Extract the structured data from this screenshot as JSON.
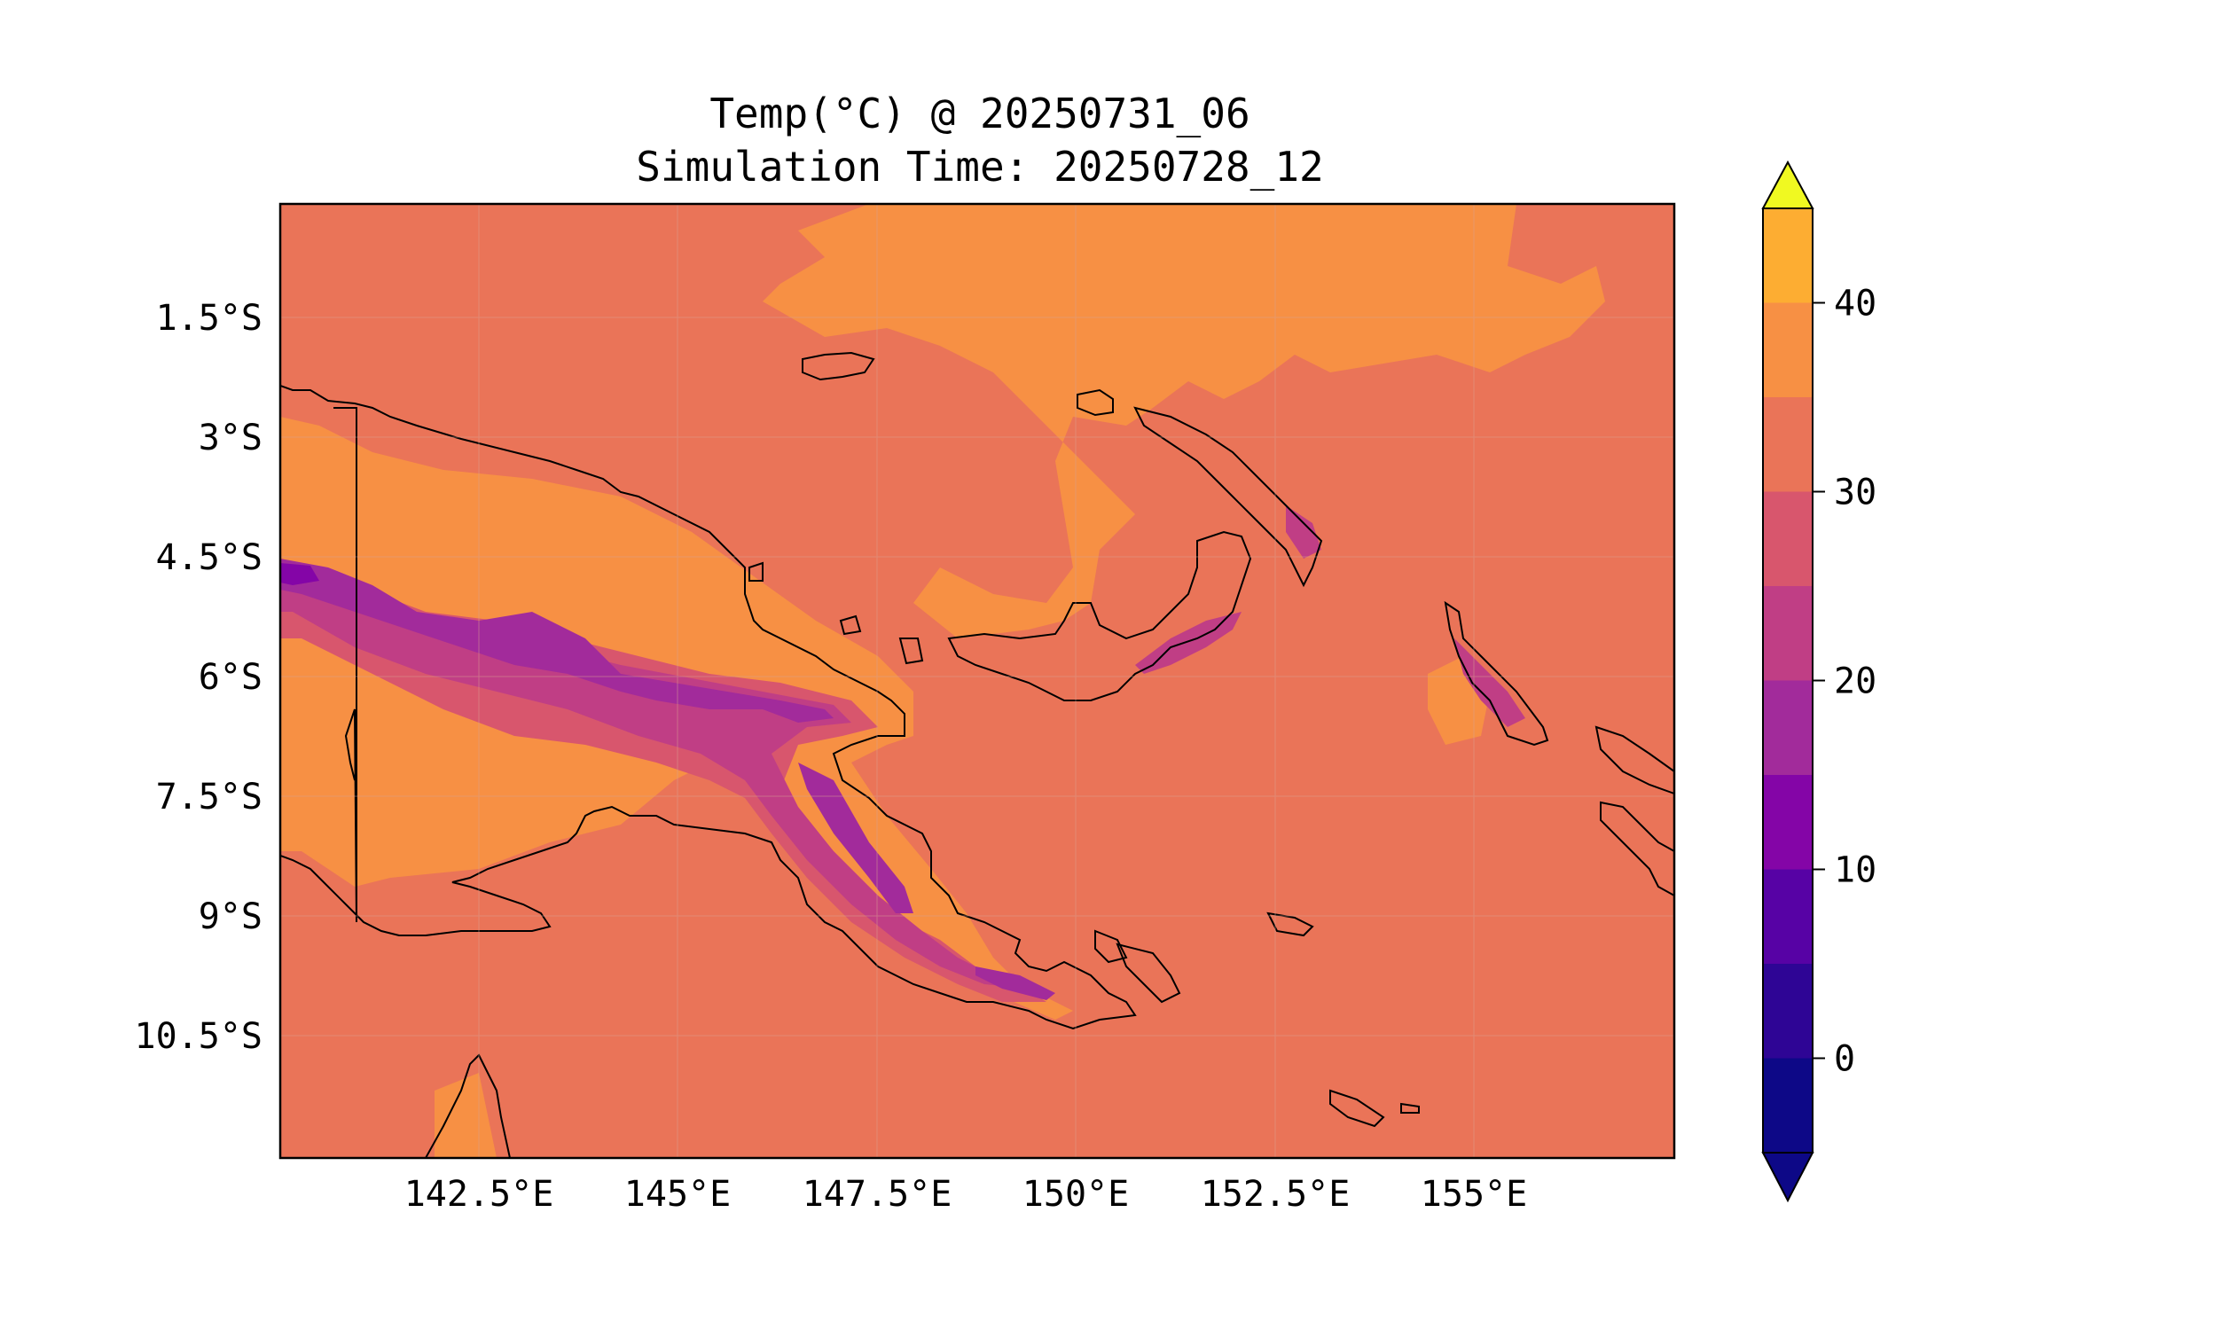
{
  "title": {
    "line1": "Temp(°C) @ 20250731_06",
    "line2": "Simulation Time: 20250728_12"
  },
  "map": {
    "region": "Papua New Guinea",
    "variable": "Temperature",
    "units": "°C",
    "background_fill": "#ea7458",
    "lon_ticks": [
      "142.5°E",
      "145°E",
      "147.5°E",
      "150°E",
      "152.5°E",
      "155°E"
    ],
    "lat_ticks": [
      "1.5°S",
      "3°S",
      "4.5°S",
      "6°S",
      "7.5°S",
      "9°S",
      "10.5°S"
    ],
    "lon_range": [
      140.0,
      157.5
    ],
    "lat_range": [
      -12.0,
      -0.1
    ]
  },
  "colorbar": {
    "tick_labels": [
      "0",
      "10",
      "20",
      "30",
      "40"
    ],
    "levels": [
      -5,
      0,
      5,
      10,
      15,
      20,
      25,
      30,
      35,
      40,
      45
    ],
    "colors": [
      "#0d0887",
      "#2e0595",
      "#5702a5",
      "#8405a7",
      "#a22b9b",
      "#c03e85",
      "#d8566d",
      "#ea7458",
      "#f79044",
      "#fdad32",
      "#f6e626"
    ],
    "extend_low_color": "#0d0887",
    "extend_high_color": "#f0f921"
  }
}
